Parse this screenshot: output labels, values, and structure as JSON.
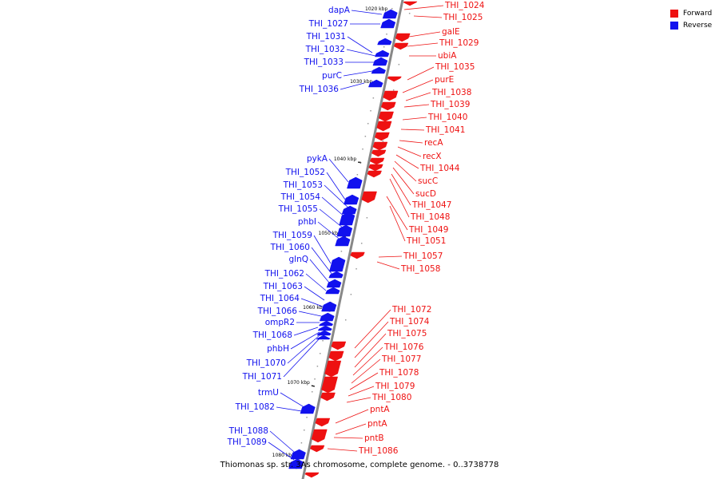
{
  "colors": {
    "forward": "#ee1111",
    "reverse": "#1111ee",
    "axis": "#888888"
  },
  "legend": [
    {
      "label": "Forward",
      "color": "#ee1111"
    },
    {
      "label": "Reverse",
      "color": "#1111ee"
    }
  ],
  "caption": "Thiomonas sp. str. 3As chromosome, complete genome. - 0..3738778",
  "ticks": [
    "1020 kbp",
    "1030 kbp",
    "1040 kbp",
    "1050 kbp",
    "1060 kbp",
    "1070 kbp",
    "1080 kbp"
  ],
  "reverse_genes": [
    "dapA",
    "THI_1027",
    "THI_1031",
    "THI_1032",
    "THI_1033",
    "purC",
    "THI_1036",
    "pykA",
    "THI_1052",
    "THI_1053",
    "THI_1054",
    "THI_1055",
    "phbI",
    "THI_1059",
    "THI_1060",
    "glnQ",
    "THI_1062",
    "THI_1063",
    "THI_1064",
    "THI_1066",
    "ompR2",
    "THI_1068",
    "phbH",
    "THI_1070",
    "THI_1071",
    "trmU",
    "THI_1082",
    "THI_1088",
    "THI_1089"
  ],
  "forward_genes": [
    "THI_1024",
    "THI_1025",
    "galE",
    "THI_1029",
    "ubiA",
    "THI_1035",
    "purE",
    "THI_1038",
    "THI_1039",
    "THI_1040",
    "THI_1041",
    "recA",
    "recX",
    "THI_1044",
    "sucC",
    "sucD",
    "THI_1047",
    "THI_1048",
    "THI_1049",
    "THI_1051",
    "THI_1057",
    "THI_1058",
    "THI_1072",
    "THI_1074",
    "THI_1075",
    "THI_1076",
    "THI_1077",
    "THI_1078",
    "THI_1079",
    "THI_1080",
    "pntA",
    "pntA",
    "pntB",
    "THI_1086"
  ]
}
